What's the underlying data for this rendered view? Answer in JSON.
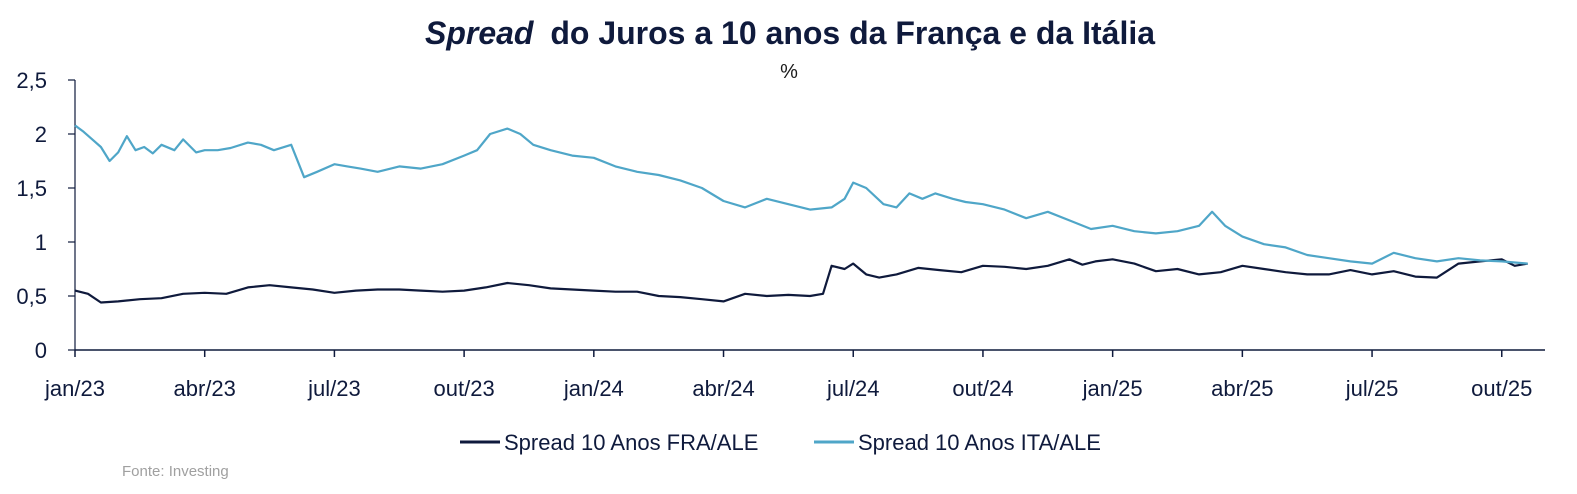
{
  "chart_data": {
    "type": "line",
    "title_italic": "Spread",
    "title_rest": "do Juros a 10 anos da França e da Itália",
    "subtitle": "%",
    "source": "Fonte: Investing",
    "ylim": [
      0,
      2.5
    ],
    "y_ticks": [
      0,
      0.5,
      1,
      1.5,
      2,
      2.5
    ],
    "y_tick_labels": [
      "0",
      "0,5",
      "1",
      "1,5",
      "2",
      "2,5"
    ],
    "x_range": [
      0,
      34
    ],
    "x_ticks": [
      0,
      3,
      6,
      9,
      12,
      15,
      18,
      21,
      24,
      27,
      30,
      33
    ],
    "x_tick_labels": [
      "jan/23",
      "abr/23",
      "jul/23",
      "out/23",
      "jan/24",
      "abr/24",
      "jul/24",
      "out/24",
      "jan/25",
      "abr/25",
      "jul/25",
      "out/25"
    ],
    "series": [
      {
        "name": "Spread 10 Anos FRA/ALE",
        "color": "#0f1a3c",
        "x": [
          0,
          0.3,
          0.6,
          1.0,
          1.5,
          2.0,
          2.5,
          3.0,
          3.5,
          4.0,
          4.5,
          5.0,
          5.5,
          6.0,
          6.5,
          7.0,
          7.5,
          8.0,
          8.5,
          9.0,
          9.5,
          10.0,
          10.5,
          11.0,
          11.5,
          12.0,
          12.5,
          13.0,
          13.5,
          14.0,
          14.5,
          15.0,
          15.5,
          16.0,
          16.5,
          17.0,
          17.3,
          17.5,
          17.8,
          18.0,
          18.3,
          18.6,
          19.0,
          19.5,
          20.0,
          20.5,
          21.0,
          21.5,
          22.0,
          22.5,
          23.0,
          23.3,
          23.6,
          24.0,
          24.5,
          25.0,
          25.5,
          26.0,
          26.5,
          27.0,
          27.5,
          28.0,
          28.5,
          29.0,
          29.5,
          30.0,
          30.5,
          31.0,
          31.5,
          32.0,
          32.5,
          33.0,
          33.3,
          33.6
        ],
        "values": [
          0.55,
          0.52,
          0.44,
          0.45,
          0.47,
          0.48,
          0.52,
          0.53,
          0.52,
          0.58,
          0.6,
          0.58,
          0.56,
          0.53,
          0.55,
          0.56,
          0.56,
          0.55,
          0.54,
          0.55,
          0.58,
          0.62,
          0.6,
          0.57,
          0.56,
          0.55,
          0.54,
          0.54,
          0.5,
          0.49,
          0.47,
          0.45,
          0.52,
          0.5,
          0.51,
          0.5,
          0.52,
          0.78,
          0.75,
          0.8,
          0.7,
          0.67,
          0.7,
          0.76,
          0.74,
          0.72,
          0.78,
          0.77,
          0.75,
          0.78,
          0.84,
          0.79,
          0.82,
          0.84,
          0.8,
          0.73,
          0.75,
          0.7,
          0.72,
          0.78,
          0.75,
          0.72,
          0.7,
          0.7,
          0.74,
          0.7,
          0.73,
          0.68,
          0.67,
          0.8,
          0.82,
          0.84,
          0.78,
          0.8
        ]
      },
      {
        "name": "Spread 10 Anos ITA/ALE",
        "color": "#4fa6c8",
        "x": [
          0,
          0.2,
          0.4,
          0.6,
          0.8,
          1.0,
          1.2,
          1.4,
          1.6,
          1.8,
          2.0,
          2.3,
          2.5,
          2.8,
          3.0,
          3.3,
          3.6,
          4.0,
          4.3,
          4.6,
          5.0,
          5.3,
          5.6,
          6.0,
          6.3,
          6.6,
          7.0,
          7.5,
          8.0,
          8.5,
          9.0,
          9.3,
          9.6,
          10.0,
          10.3,
          10.6,
          11.0,
          11.5,
          12.0,
          12.5,
          13.0,
          13.5,
          14.0,
          14.5,
          15.0,
          15.5,
          16.0,
          16.5,
          17.0,
          17.5,
          17.8,
          18.0,
          18.3,
          18.7,
          19.0,
          19.3,
          19.6,
          19.9,
          20.3,
          20.6,
          21.0,
          21.5,
          22.0,
          22.5,
          23.0,
          23.5,
          24.0,
          24.5,
          25.0,
          25.5,
          26.0,
          26.3,
          26.6,
          27.0,
          27.5,
          28.0,
          28.5,
          29.0,
          29.5,
          30.0,
          30.5,
          31.0,
          31.5,
          32.0,
          32.5,
          33.0,
          33.6
        ],
        "values": [
          2.08,
          2.02,
          1.95,
          1.88,
          1.75,
          1.83,
          1.98,
          1.85,
          1.88,
          1.82,
          1.9,
          1.85,
          1.95,
          1.83,
          1.85,
          1.85,
          1.87,
          1.92,
          1.9,
          1.85,
          1.9,
          1.6,
          1.65,
          1.72,
          1.7,
          1.68,
          1.65,
          1.7,
          1.68,
          1.72,
          1.8,
          1.85,
          2.0,
          2.05,
          2.0,
          1.9,
          1.85,
          1.8,
          1.78,
          1.7,
          1.65,
          1.62,
          1.57,
          1.5,
          1.38,
          1.32,
          1.4,
          1.35,
          1.3,
          1.32,
          1.4,
          1.55,
          1.5,
          1.35,
          1.32,
          1.45,
          1.4,
          1.45,
          1.4,
          1.37,
          1.35,
          1.3,
          1.22,
          1.28,
          1.2,
          1.12,
          1.15,
          1.1,
          1.08,
          1.1,
          1.15,
          1.28,
          1.15,
          1.05,
          0.98,
          0.95,
          0.88,
          0.85,
          0.82,
          0.8,
          0.9,
          0.85,
          0.82,
          0.85,
          0.83,
          0.82,
          0.8
        ]
      }
    ],
    "legend_position": "bottom"
  }
}
